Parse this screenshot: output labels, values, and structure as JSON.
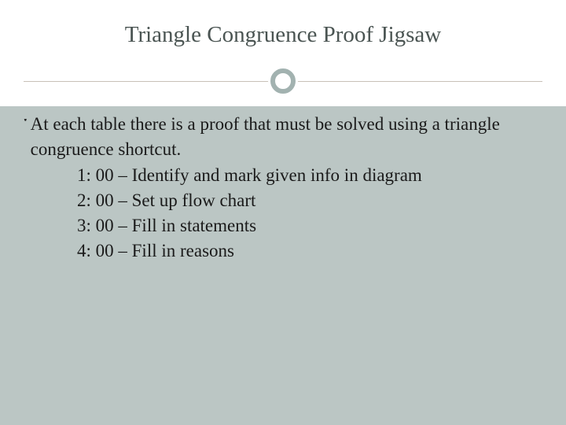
{
  "slide": {
    "title": "Triangle Congruence Proof Jigsaw",
    "background_color": "#bbc6c4",
    "title_bg": "#ffffff",
    "title_color": "#4a5452",
    "title_fontsize": 29,
    "divider_color": "#c8c0b8",
    "circle_ring_color": "#a2b2b0",
    "body_color": "#1a1a1a",
    "body_fontsize": 23,
    "bullet_glyph": "་",
    "lead": "At each table there is a proof that must be solved using a triangle congruence shortcut.",
    "steps": [
      "1: 00 – Identify and mark given info in diagram",
      "2: 00 – Set up flow chart",
      "3: 00 – Fill in statements",
      "4: 00 – Fill in reasons"
    ]
  }
}
